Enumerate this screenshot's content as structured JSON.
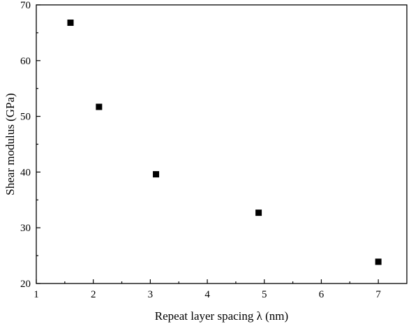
{
  "chart_data": {
    "type": "scatter",
    "title": "",
    "xlabel": "Repeat layer spacing λ (nm)",
    "ylabel": "Shear modulus (GPa)",
    "xlim": [
      1,
      7.5
    ],
    "ylim": [
      20,
      70
    ],
    "xticks": [
      1,
      2,
      3,
      4,
      5,
      6,
      7
    ],
    "yticks": [
      20,
      30,
      40,
      50,
      60,
      70
    ],
    "grid": false,
    "legend": "none",
    "marker": "square",
    "color": "#000000",
    "series": [
      {
        "x": [
          1.6,
          2.1,
          3.1,
          4.9,
          7.0
        ],
        "y": [
          66.8,
          51.7,
          39.6,
          32.7,
          23.9
        ]
      }
    ]
  }
}
